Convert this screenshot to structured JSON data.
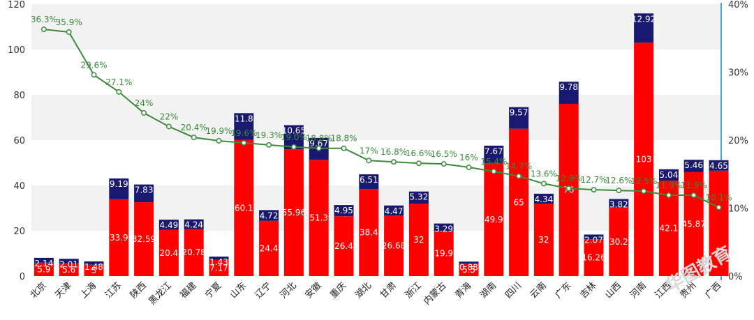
{
  "chart_data": {
    "type": "bar",
    "categories": [
      "北京",
      "天津",
      "上海",
      "江苏",
      "陕西",
      "黑龙江",
      "福建",
      "宁夏",
      "山东",
      "辽宁",
      "河北",
      "安徽",
      "重庆",
      "湖北",
      "甘肃",
      "浙江",
      "内蒙古",
      "青海",
      "湖南",
      "四川",
      "云南",
      "广东",
      "吉林",
      "山西",
      "河南",
      "江西",
      "贵州",
      "广西"
    ],
    "series": [
      {
        "values": [
          5.9,
          5.6,
          5,
          33.9,
          32.59,
          20.4,
          20.78,
          7.17,
          60.1,
          24.4,
          55.96,
          51.3,
          26.4,
          38.4,
          26.68,
          32,
          19.9,
          5.5,
          49.9,
          65,
          32,
          76,
          16.26,
          30.2,
          103,
          42.1,
          45.87,
          46.5
        ],
        "color": "#ff0000"
      },
      {
        "values": [
          2.14,
          2.01,
          1.48,
          9.19,
          7.83,
          4.49,
          4.24,
          1.43,
          11.8,
          4.72,
          10.65,
          9.67,
          4.95,
          6.51,
          4.47,
          5.32,
          3.29,
          0.88,
          7.67,
          9.57,
          4.34,
          9.78,
          2.07,
          3.82,
          12.92,
          5.04,
          5.46,
          4.65
        ],
        "color": "#191970"
      },
      {
        "values": [
          36.3,
          35.9,
          29.6,
          27.1,
          24,
          22,
          20.4,
          19.9,
          19.6,
          19.3,
          19.0,
          18.8,
          18.8,
          17,
          16.8,
          16.6,
          16.5,
          16,
          15.4,
          14.7,
          13.6,
          12.9,
          12.7,
          12.6,
          12.5,
          11.9,
          11.9,
          10.1
        ],
        "color": "#3a8a3a",
        "axis": "right"
      }
    ],
    "red_labels": [
      "5.9",
      "5.6",
      "5",
      "33.9",
      "32.59",
      "20.4",
      "20.78",
      "7.17",
      "60.1",
      "24.4",
      "55.96",
      "51.3",
      "26.4",
      "38.4",
      "26.68",
      "32",
      "19.9",
      "5.5",
      "49.9",
      "65",
      "32",
      "76",
      "16.26",
      "30.2",
      "103",
      "42.1",
      "45.87",
      ""
    ],
    "blue_labels": [
      "2.14",
      "2.01",
      "1.48",
      "9.19",
      "7.83",
      "4.49",
      "4.24",
      "1.43",
      "11.8",
      "4.72",
      "10.65",
      "9.67",
      "4.95",
      "6.51",
      "4.47",
      "5.32",
      "3.29",
      "0.88",
      "7.67",
      "9.57",
      "4.34",
      "9.78",
      "2.07",
      "3.82",
      "12.92",
      "5.04",
      "5.46",
      "4.65"
    ],
    "pct_labels": [
      "36.3%",
      "35.9%",
      "29.6%",
      "27.1%",
      "24%",
      "22%",
      "20.4%",
      "19.9%",
      "19.6%",
      "19.3%",
      "19.0%",
      "18.8%",
      "18.8%",
      "17%",
      "16.8%",
      "16.6%",
      "16.5%",
      "16%",
      "15.4%",
      "14.7%",
      "13.6%",
      "12.9%",
      "12.7%",
      "12.6%",
      "12.5%",
      "11.9%",
      "11.9%",
      "10.1%"
    ],
    "ylim": [
      0,
      120
    ],
    "yticks": [
      0,
      20,
      40,
      60,
      80,
      100,
      120
    ],
    "y2lim": [
      0,
      40
    ],
    "y2ticks": [
      "0%",
      "10%",
      "20%",
      "30%",
      "40%"
    ],
    "grid": "horizontal bands",
    "legend": "none"
  },
  "watermark": "华图教育"
}
